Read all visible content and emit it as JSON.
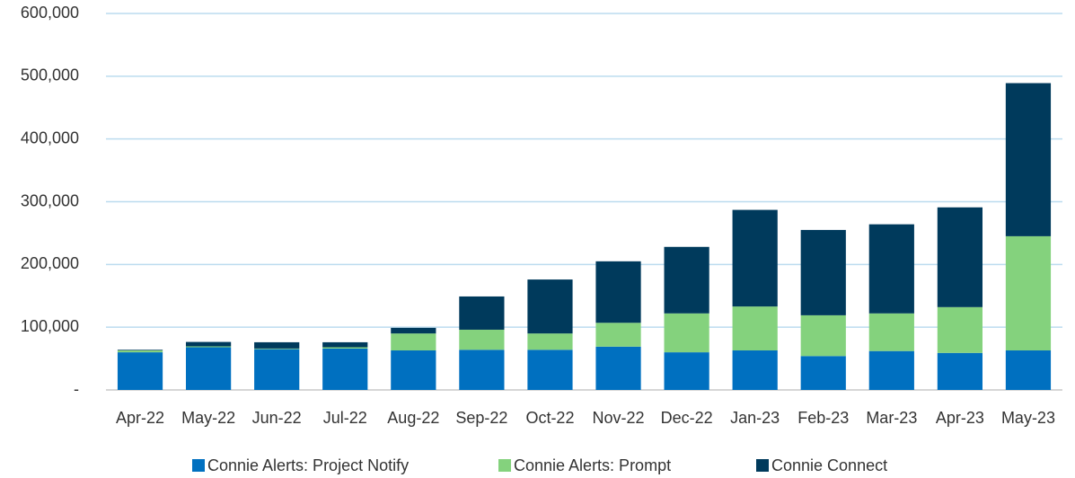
{
  "chart_data": {
    "type": "stacked_bar",
    "categories": [
      "Apr-22",
      "May-22",
      "Jun-22",
      "Jul-22",
      "Aug-22",
      "Sep-22",
      "Oct-22",
      "Nov-22",
      "Dec-22",
      "Jan-23",
      "Feb-23",
      "Mar-23",
      "Apr-23",
      "May-23"
    ],
    "series": [
      {
        "name": "Connie Alerts: Project Notify",
        "color": "#0070c0",
        "values": [
          60000,
          68000,
          65000,
          66000,
          63000,
          64000,
          64000,
          69000,
          60000,
          63000,
          54000,
          62000,
          59000,
          63000
        ]
      },
      {
        "name": "Connie Alerts:  Prompt",
        "color": "#84d27d",
        "values": [
          3000,
          1500,
          1000,
          2000,
          27000,
          32000,
          26000,
          38000,
          62000,
          70000,
          65000,
          60000,
          73000,
          182000
        ]
      },
      {
        "name": "Connie Connect",
        "color": "#003a5c",
        "values": [
          1000,
          7000,
          10000,
          8000,
          9000,
          53000,
          86000,
          98000,
          106000,
          154000,
          136000,
          142000,
          159000,
          244000
        ]
      }
    ],
    "ylim": [
      0,
      600000
    ],
    "yticks": [
      {
        "value": 0,
        "label": "-"
      },
      {
        "value": 100000,
        "label": "100,000"
      },
      {
        "value": 200000,
        "label": "200,000"
      },
      {
        "value": 300000,
        "label": "300,000"
      },
      {
        "value": 400000,
        "label": "400,000"
      },
      {
        "value": 500000,
        "label": "500,000"
      },
      {
        "value": 600000,
        "label": "600,000"
      }
    ],
    "grid": true,
    "legend": "bottom"
  }
}
